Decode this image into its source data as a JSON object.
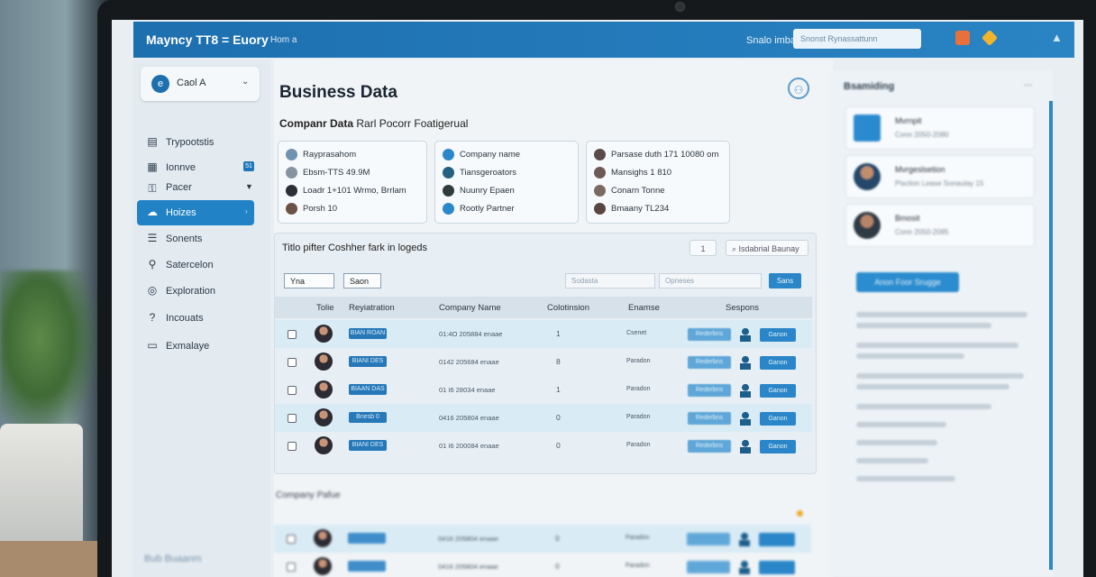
{
  "app": {
    "title": "Mayncy TT8 = Euory",
    "top_link": "Hom a",
    "top_user": "Snalo imbasan",
    "search_placeholder": "Snonst Rynassattunn"
  },
  "sidebar": {
    "workspace": "Caol A",
    "items": [
      {
        "label": "Trypootstis",
        "icon": "clipboard-icon"
      },
      {
        "label": "Ionnve",
        "icon": "grid-icon",
        "badge": "51"
      },
      {
        "label": "Pacer",
        "icon": "key-icon"
      },
      {
        "label": "Hoizes",
        "icon": "cloud-icon",
        "active": true
      },
      {
        "label": "Sonents",
        "icon": "list-icon"
      },
      {
        "label": "Satercelon",
        "icon": "user-icon"
      },
      {
        "label": "Exploration",
        "icon": "compass-icon"
      },
      {
        "label": "Incouats",
        "icon": "help-icon"
      },
      {
        "label": "Exmalaye",
        "icon": "card-icon"
      }
    ],
    "footer": "Bub Buaanm"
  },
  "main": {
    "title": "Business Data",
    "section_title": "Companr Data",
    "section_subtitle": "Rarl Pocorr Foatigerual",
    "cards": [
      [
        "Rayprasahom",
        "Ebsm-TTS 49.9M",
        "Loadr 1+101 Wrmo, Brrlam",
        "Porsh 10"
      ],
      [
        "Company name",
        "Tiansgeroators",
        "Nuunry Epaen",
        "Rootly Partner"
      ],
      [
        "Parsase duth 171 10080 om",
        "Mansighs 1\t810",
        "Conarn Tonne",
        "Bmaany TL234"
      ]
    ],
    "table_title": "Titlo pifter Coshher fark in logeds",
    "page_count": "1",
    "top_filter": "Isdabrial Baunay",
    "filter_1": "Ynа",
    "filter_2": "Saon",
    "search_1": "Sodasta",
    "search_2": "Opneses",
    "go_label": "Sans",
    "columns": [
      "Tolie",
      "Reyiatration",
      "Company Name",
      "Colotinsion",
      "Enamse",
      "Sespons"
    ],
    "rows": [
      {
        "tag": "BIAN ROAN",
        "company": "01:4O 205884 enaae",
        "count": "1",
        "status": "Csenet",
        "btn1": "Rederbns",
        "btn2": "Ganon"
      },
      {
        "tag": "BIANI DES",
        "company": "0142 205684 enaae",
        "count": "8",
        "status": "Paradon",
        "btn1": "Rederbns",
        "btn2": "Ganon"
      },
      {
        "tag": "BIAAN DAS",
        "company": "01 I6 2\u00058034 enaae",
        "count": "1",
        "status": "Paradon",
        "btn1": "Rederbns",
        "btn2": "Ganon"
      },
      {
        "tag": "Bnesb 0",
        "company": "0416 205804 enaae",
        "count": "0",
        "status": "Paradon",
        "btn1": "Rederbns",
        "btn2": "Ganon"
      },
      {
        "tag": "BIANI DES",
        "company": "01 I6 200084 enaae",
        "count": "0",
        "status": "Paradon",
        "btn1": "Rederbns",
        "btn2": "Ganon"
      }
    ],
    "lower_title": "Company Pafue",
    "lower_rows": [
      {
        "company": "0416 205804 enaae",
        "count": "0",
        "status": "Paradon"
      },
      {
        "company": "0416 205804 enaae",
        "count": "0",
        "status": "Paradon"
      }
    ]
  },
  "right": {
    "title": "Bsamiding",
    "more": "...",
    "cards": [
      {
        "title": "Mvrnpit",
        "sub": "Conn 2050-2080"
      },
      {
        "title": "Mvrgeslsetion",
        "sub": "Pisclion Lease Sonaulay 15"
      },
      {
        "title": "Bmosit",
        "sub": "Conn 2050-2085"
      }
    ],
    "button": "Anon Foor Srugge"
  },
  "colors": {
    "accent": "#2183c5",
    "topbar": "#1d6fae"
  }
}
